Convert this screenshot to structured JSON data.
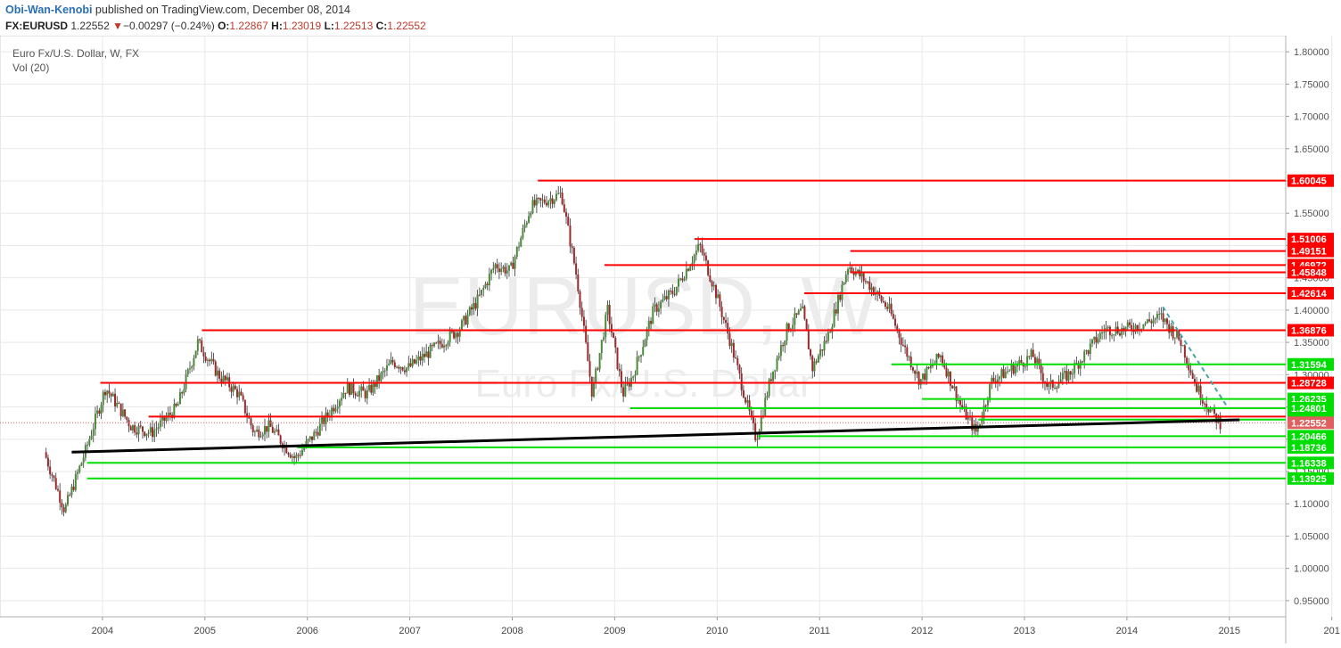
{
  "header": {
    "author": "Obi-Wan-Kenobi",
    "published": "published on TradingView.com, December 08, 2014",
    "symbol": "FX:EURUSD",
    "last": "1.22552",
    "change_arrow": "▼",
    "change": "−0.00297 (−0.24%)",
    "o_label": "O:",
    "o_value": "1.22867",
    "h_label": "H:",
    "h_value": "1.23019",
    "l_label": "L:",
    "l_value": "1.22513",
    "c_label": "C:",
    "c_value": "1.22552"
  },
  "legend": {
    "series_name": "Euro Fx/U.S. Dollar, W, FX",
    "indicator": "Vol (20)"
  },
  "watermark": {
    "symbol": "EURUSD, W",
    "description": "Euro Fx/U.S. Dollar"
  },
  "colors": {
    "resistance": "#ff0000",
    "support": "#00dd00",
    "trendline": "#000000",
    "downtrend": "#4aa3a8",
    "candle_up": "#4a8a3a",
    "candle_down": "#9a2a2a",
    "current_price": "#e06060"
  },
  "chart_data": {
    "type": "candlestick",
    "title": "Euro Fx/U.S. Dollar, W, FX",
    "x_ticks": [
      "2004",
      "2005",
      "2006",
      "2007",
      "2008",
      "2009",
      "2010",
      "2011",
      "2012",
      "2013",
      "2014",
      "2015",
      "201"
    ],
    "y_ticks": [
      "1.80000",
      "1.75000",
      "1.70000",
      "1.65000",
      "1.60000",
      "1.55000",
      "1.50000",
      "1.45000",
      "1.40000",
      "1.35000",
      "1.30000",
      "1.25000",
      "1.20000",
      "1.15000",
      "1.10000",
      "1.05000",
      "1.00000",
      "0.95000"
    ],
    "ylim": [
      0.925,
      1.825
    ],
    "grid": true,
    "price_path": [
      [
        2003.45,
        1.18
      ],
      [
        2003.65,
        1.09
      ],
      [
        2003.85,
        1.18
      ],
      [
        2004.05,
        1.28
      ],
      [
        2004.3,
        1.22
      ],
      [
        2004.5,
        1.21
      ],
      [
        2004.75,
        1.25
      ],
      [
        2004.95,
        1.35
      ],
      [
        2005.15,
        1.3
      ],
      [
        2005.35,
        1.27
      ],
      [
        2005.5,
        1.21
      ],
      [
        2005.65,
        1.22
      ],
      [
        2005.9,
        1.17
      ],
      [
        2006.1,
        1.21
      ],
      [
        2006.4,
        1.28
      ],
      [
        2006.6,
        1.27
      ],
      [
        2006.85,
        1.32
      ],
      [
        2007.0,
        1.31
      ],
      [
        2007.25,
        1.34
      ],
      [
        2007.5,
        1.37
      ],
      [
        2007.7,
        1.42
      ],
      [
        2007.85,
        1.47
      ],
      [
        2008.0,
        1.46
      ],
      [
        2008.2,
        1.56
      ],
      [
        2008.35,
        1.57
      ],
      [
        2008.5,
        1.58
      ],
      [
        2008.65,
        1.45
      ],
      [
        2008.8,
        1.27
      ],
      [
        2008.95,
        1.4
      ],
      [
        2009.1,
        1.27
      ],
      [
        2009.2,
        1.3
      ],
      [
        2009.4,
        1.4
      ],
      [
        2009.6,
        1.43
      ],
      [
        2009.85,
        1.5
      ],
      [
        2010.0,
        1.43
      ],
      [
        2010.15,
        1.35
      ],
      [
        2010.4,
        1.2
      ],
      [
        2010.55,
        1.3
      ],
      [
        2010.7,
        1.37
      ],
      [
        2010.85,
        1.4
      ],
      [
        2010.95,
        1.31
      ],
      [
        2011.1,
        1.36
      ],
      [
        2011.3,
        1.47
      ],
      [
        2011.5,
        1.44
      ],
      [
        2011.7,
        1.4
      ],
      [
        2011.85,
        1.34
      ],
      [
        2012.0,
        1.29
      ],
      [
        2012.2,
        1.33
      ],
      [
        2012.4,
        1.25
      ],
      [
        2012.55,
        1.21
      ],
      [
        2012.7,
        1.29
      ],
      [
        2012.9,
        1.31
      ],
      [
        2013.1,
        1.33
      ],
      [
        2013.25,
        1.28
      ],
      [
        2013.45,
        1.3
      ],
      [
        2013.6,
        1.33
      ],
      [
        2013.8,
        1.37
      ],
      [
        2014.0,
        1.37
      ],
      [
        2014.2,
        1.38
      ],
      [
        2014.35,
        1.39
      ],
      [
        2014.55,
        1.35
      ],
      [
        2014.7,
        1.28
      ],
      [
        2014.85,
        1.24
      ],
      [
        2014.93,
        1.2255
      ]
    ],
    "resistance_levels": [
      {
        "value": 1.60045,
        "from": 2008.25
      },
      {
        "value": 1.51006,
        "from": 2009.78
      },
      {
        "value": 1.49151,
        "from": 2011.3
      },
      {
        "value": 1.46972,
        "from": 2008.9
      },
      {
        "value": 1.45848,
        "from": 2011.3
      },
      {
        "value": 1.42614,
        "from": 2010.85
      },
      {
        "value": 1.36876,
        "from": 2004.97
      },
      {
        "value": 1.28728,
        "from": 2003.98
      },
      {
        "value": 1.23509,
        "from": 2004.45
      }
    ],
    "support_levels": [
      {
        "value": 1.31594,
        "from": 2011.7
      },
      {
        "value": 1.26235,
        "from": 2012.0
      },
      {
        "value": 1.24801,
        "from": 2009.15
      },
      {
        "value": 1.23037,
        "from": 2012.55
      },
      {
        "value": 1.20466,
        "from": 2010.4
      },
      {
        "value": 1.18736,
        "from": 2005.9
      },
      {
        "value": 1.16338,
        "from": 2003.85
      },
      {
        "value": 1.13925,
        "from": 2003.85
      }
    ],
    "current_price": {
      "value": 1.22552,
      "label": "1.22552"
    },
    "trendline": {
      "from": [
        2003.7,
        1.18
      ],
      "to": [
        2015.1,
        1.23
      ]
    },
    "downtrend_line": {
      "from": [
        2014.35,
        1.405
      ],
      "to": [
        2014.98,
        1.25
      ]
    }
  }
}
